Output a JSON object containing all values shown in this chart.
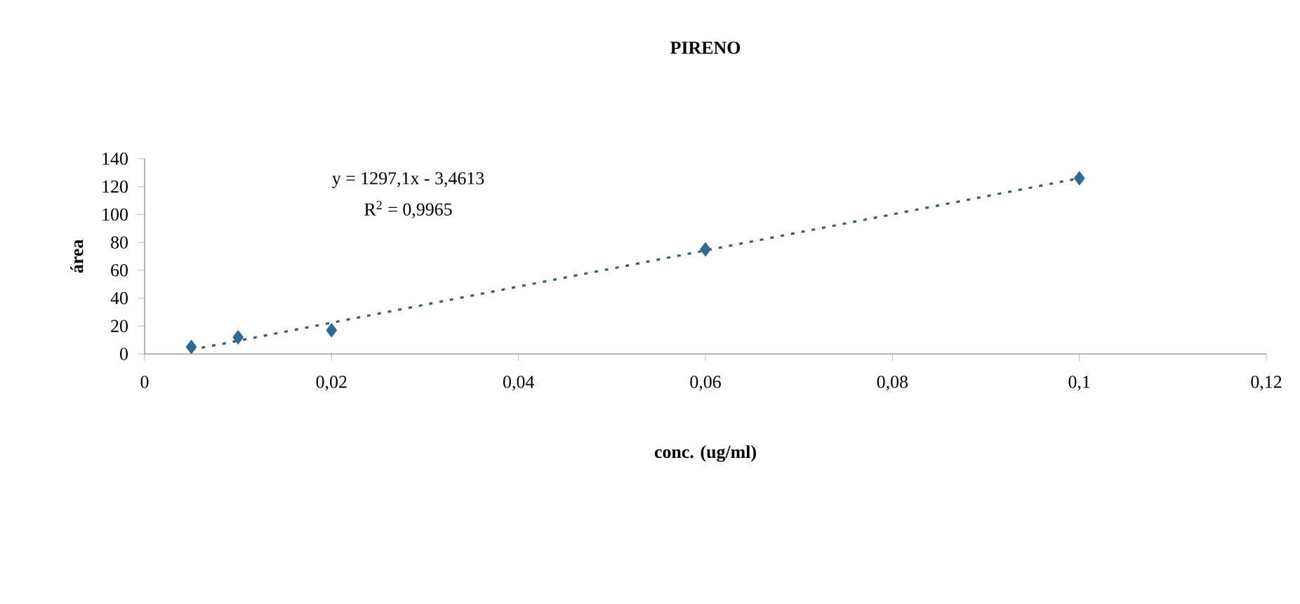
{
  "chart_data": {
    "type": "scatter",
    "title": "PIRENO",
    "xlabel": "conc. (ug/ml)",
    "ylabel": "área",
    "series": [
      {
        "type": "scatter",
        "color": "#2e6a96",
        "marker": "diamond",
        "x": [
          0.005,
          0.01,
          0.02,
          0.06,
          0.1
        ],
        "values": [
          5,
          12,
          17,
          75,
          126
        ]
      },
      {
        "type": "line",
        "color": "#3a5a70",
        "marker": "none",
        "line_style": "dotted",
        "x": [
          0.005,
          0.1
        ],
        "values": [
          3,
          126
        ]
      }
    ],
    "xlim": [
      0,
      0.12
    ],
    "ylim": [
      0,
      140
    ],
    "xticks": [
      0,
      {
        "value": 0.02,
        "label": "0,02"
      },
      {
        "value": 0.04,
        "label": "0,04"
      },
      {
        "value": 0.06,
        "label": "0,06"
      },
      {
        "value": 0.08,
        "label": "0,08"
      },
      {
        "value": 0.1,
        "label": "0,1"
      },
      {
        "value": 0.12,
        "label": "0,12"
      }
    ],
    "yticks": [
      0,
      20,
      40,
      60,
      80,
      100,
      120,
      140
    ],
    "annotations": [
      "y = 1297,1x - 3,4613",
      "R$^{2}$ = 0,9965"
    ]
  }
}
